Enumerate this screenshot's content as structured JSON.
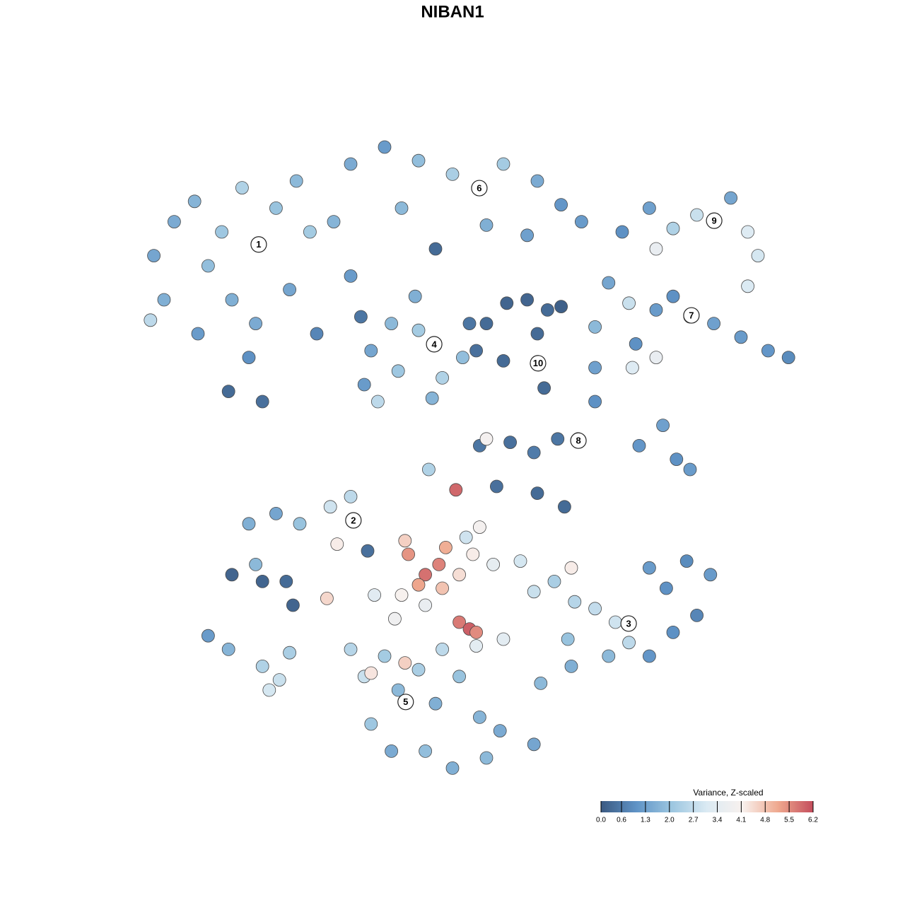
{
  "chart_data": {
    "type": "scatter",
    "title": "NIBAN1",
    "xlim": [
      -10,
      10
    ],
    "ylim": [
      -10,
      10
    ],
    "series": [
      {
        "x": [
          -8.8,
          -8.5,
          -8.2,
          -7.6,
          -7.2,
          -6.8,
          -6.2,
          -5.7,
          -5.2,
          -4.6,
          -4.2,
          -6.5,
          -5.8,
          -7.5,
          -6.0,
          -6.6,
          -5.6,
          -3.5,
          -3.0,
          -4.8,
          -8.9,
          -4.0,
          -3.0,
          -2.0,
          -1.0,
          0.0,
          0.8,
          1.5,
          2.5,
          3.2,
          3.8,
          -1.5,
          1.0,
          2.2,
          -0.5,
          5.0,
          5.8,
          6.5,
          7.2,
          7.7,
          8.2,
          8.7,
          9.0,
          8.7,
          6.0,
          4.6,
          5.2,
          6.0,
          6.5,
          7.0,
          7.7,
          8.5,
          9.3,
          9.9,
          5.4,
          6.0,
          5.3,
          4.2,
          -2.7,
          -2.4,
          -2.6,
          -1.8,
          -1.6,
          -1.0,
          -0.5,
          -0.3,
          0.3,
          -2.2,
          -0.6,
          0.5,
          -1.1,
          1.0,
          1.6,
          2.2,
          2.8,
          3.2,
          0.7,
          2.5,
          2.5,
          2.7,
          1.5,
          0.8,
          1.7,
          2.4,
          3.1,
          3.7,
          4.2,
          4.2,
          5.5,
          6.2,
          6.6,
          7.0,
          1.3,
          2.5,
          3.3,
          1.0,
          -0.7,
          -6.0,
          -5.2,
          -4.5,
          -3.6,
          -3.0,
          -2.9,
          -2.5,
          -5.8,
          -6.5,
          -5.6,
          -4.9,
          -4.7,
          -3.7,
          -3.4,
          -1.4,
          -1.3,
          -0.8,
          -0.4,
          -0.2,
          -1.0,
          -0.3,
          0.2,
          0.6,
          0.8,
          -1.5,
          -0.8,
          0.2,
          0.5,
          0.7,
          0.1,
          -1.7,
          -2.3,
          1.2,
          0.4,
          2.0,
          2.4,
          3.0,
          3.5,
          3.6,
          4.2,
          4.8,
          5.2,
          3.4,
          4.6,
          5.8,
          6.3,
          6.9,
          7.6,
          7.2,
          6.5,
          5.8,
          1.5,
          2.6,
          3.5,
          -3.0,
          -2.6,
          -2.0,
          -1.6,
          -1.0,
          -0.5,
          0.2,
          0.8,
          1.4,
          2.4,
          -2.4,
          -1.8,
          -0.8,
          0.0,
          1.0,
          -1.4,
          -2.4,
          0.7,
          -0.3,
          -7.2,
          -6.6,
          -5.6,
          -5.1,
          -4.8,
          -5.4
        ],
        "y": [
          5.8,
          4.5,
          6.8,
          7.4,
          5.5,
          6.5,
          7.8,
          6.1,
          7.2,
          8.0,
          6.5,
          4.5,
          3.8,
          3.5,
          2.8,
          1.8,
          1.5,
          6.8,
          5.2,
          4.8,
          3.9,
          3.5,
          8.5,
          9.0,
          8.6,
          8.2,
          7.8,
          8.5,
          8.0,
          7.3,
          6.8,
          7.2,
          6.7,
          6.4,
          6.0,
          6.5,
          7.2,
          6.6,
          7.0,
          6.8,
          7.5,
          6.5,
          5.8,
          4.9,
          6.0,
          5.0,
          4.4,
          4.2,
          4.6,
          4.0,
          3.8,
          3.4,
          3.0,
          2.8,
          3.2,
          2.8,
          2.5,
          3.7,
          4.0,
          3.0,
          2.0,
          3.8,
          2.4,
          3.6,
          3.2,
          2.2,
          2.8,
          1.5,
          1.6,
          3.8,
          4.6,
          3.8,
          4.4,
          4.5,
          4.2,
          4.3,
          3.0,
          3.5,
          2.6,
          1.9,
          2.7,
          0.2,
          0.3,
          0.0,
          0.4,
          0.4,
          1.5,
          2.5,
          0.2,
          0.8,
          -0.2,
          -0.5,
          -1.0,
          -1.2,
          -1.6,
          0.4,
          -0.5,
          -2.1,
          -1.8,
          -2.1,
          -1.6,
          -1.3,
          -2.0,
          -2.9,
          -3.3,
          -3.6,
          -3.8,
          -3.8,
          -4.5,
          -4.3,
          -2.7,
          -2.6,
          -3.0,
          -3.6,
          -3.3,
          -2.8,
          -3.9,
          -4.0,
          -3.6,
          -3.0,
          -2.2,
          -4.2,
          -4.5,
          -5.0,
          -5.2,
          -5.3,
          -1.1,
          -4.9,
          -4.2,
          -3.3,
          -2.5,
          -3.2,
          -4.1,
          -3.8,
          -3.4,
          -4.4,
          -4.6,
          -5.0,
          -5.6,
          -5.5,
          -6.0,
          -3.4,
          -4.0,
          -3.2,
          -3.6,
          -4.8,
          -5.3,
          -6.0,
          -5.5,
          -6.8,
          -6.3,
          -5.8,
          -6.6,
          -6.0,
          -7.0,
          -6.4,
          -7.4,
          -6.6,
          -7.8,
          -8.2,
          -8.6,
          -8.0,
          -8.8,
          -8.8,
          -9.3,
          -9.0,
          -6.2,
          -6.5,
          -5.7,
          -5.8,
          -5.4,
          -5.8,
          -6.3,
          -6.7,
          -5.9,
          -7.0
        ],
        "values": [
          1.4,
          1.6,
          1.5,
          1.7,
          1.9,
          2.1,
          2.4,
          2.3,
          2.0,
          1.8,
          2.2,
          1.6,
          1.5,
          1.2,
          1.0,
          0.3,
          0.4,
          1.7,
          1.2,
          1.4,
          2.6,
          0.8,
          1.5,
          1.2,
          1.9,
          2.3,
          2.5,
          2.2,
          1.5,
          1.1,
          1.2,
          1.8,
          1.6,
          1.3,
          0.3,
          1.0,
          1.3,
          2.4,
          2.8,
          1.6,
          1.4,
          3.2,
          3.0,
          3.1,
          3.6,
          1.4,
          2.8,
          1.2,
          1.0,
          1.1,
          1.3,
          1.2,
          1.1,
          0.9,
          1.0,
          3.6,
          3.2,
          1.8,
          0.5,
          1.4,
          1.2,
          1.8,
          2.1,
          2.2,
          2.6,
          2.4,
          1.9,
          2.6,
          1.7,
          0.5,
          1.6,
          0.3,
          0.2,
          0.2,
          0.3,
          0.1,
          0.4,
          0.3,
          0.2,
          0.3,
          0.3,
          0.5,
          0.4,
          0.6,
          0.5,
          1.7,
          1.0,
          1.3,
          1.1,
          1.3,
          1.0,
          1.2,
          0.4,
          0.3,
          0.3,
          4.0,
          2.4,
          1.6,
          1.4,
          2.0,
          2.9,
          2.6,
          2.8,
          0.4,
          1.8,
          0.2,
          0.2,
          0.3,
          0.2,
          4.5,
          4.2,
          4.6,
          5.4,
          5.8,
          5.6,
          5.1,
          5.2,
          4.8,
          4.4,
          4.2,
          4.0,
          4.1,
          3.6,
          5.7,
          6.0,
          5.5,
          5.9,
          3.8,
          3.3,
          3.5,
          2.9,
          3.0,
          2.8,
          2.3,
          4.2,
          2.5,
          2.7,
          2.9,
          2.6,
          2.0,
          1.8,
          1.2,
          1.0,
          0.9,
          1.2,
          0.8,
          1.0,
          1.1,
          3.4,
          1.8,
          1.6,
          2.5,
          2.8,
          2.2,
          1.8,
          2.3,
          1.6,
          2.0,
          1.7,
          1.5,
          1.4,
          2.1,
          1.5,
          1.9,
          1.6,
          1.8,
          4.6,
          4.3,
          3.4,
          2.6,
          1.2,
          1.7,
          2.4,
          2.8,
          2.3,
          3.0
        ]
      }
    ],
    "annotations": [
      {
        "text": "1",
        "x": -5.71,
        "y": 6.13
      },
      {
        "text": "2",
        "x": -2.92,
        "y": -2.0
      },
      {
        "text": "3",
        "x": 5.19,
        "y": -5.04
      },
      {
        "text": "4",
        "x": -0.54,
        "y": 3.19
      },
      {
        "text": "5",
        "x": -1.38,
        "y": -7.35
      },
      {
        "text": "6",
        "x": 0.79,
        "y": 7.79
      },
      {
        "text": "7",
        "x": 7.04,
        "y": 4.04
      },
      {
        "text": "8",
        "x": 3.71,
        "y": 0.35
      },
      {
        "text": "9",
        "x": 7.71,
        "y": 6.83
      },
      {
        "text": "10",
        "x": 2.52,
        "y": 2.63
      }
    ],
    "colorbar": {
      "title": "Variance, Z-scaled",
      "lim": [
        0,
        6.2
      ],
      "colors": [
        "#3b5a82",
        "#5f93c6",
        "#9cc6e0",
        "#dbeaf3",
        "#f8f1ee",
        "#efa98f",
        "#c44d5c"
      ],
      "ticks": [
        {
          "value": 0,
          "label": "0.0"
        },
        0.6,
        1.3,
        {
          "value": 2,
          "label": "2.0"
        },
        2.7,
        3.4,
        4.1,
        4.8,
        5.5,
        6.2
      ]
    }
  }
}
